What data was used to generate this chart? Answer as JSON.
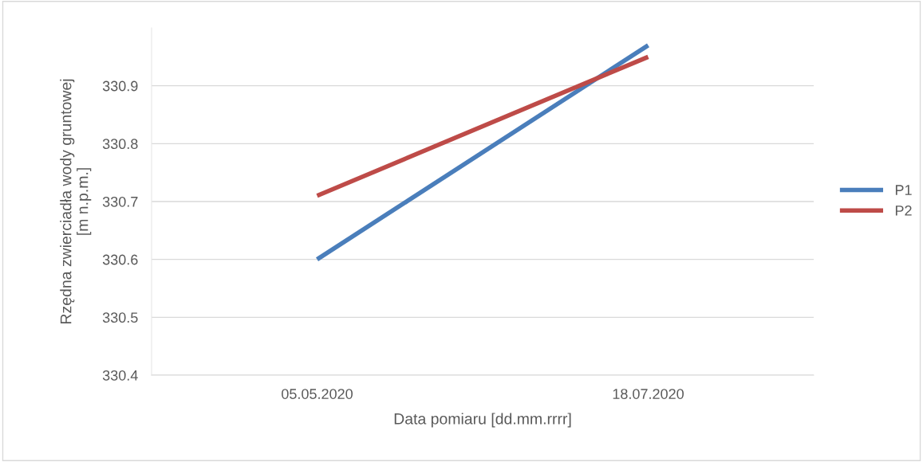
{
  "chart_data": {
    "type": "line",
    "xlabel": "Data pomiaru [dd.mm.rrrr]",
    "ylabel": "Rzędna zwierciadła wody gruntowej\n[m n.p.m.]",
    "categories": [
      "05.05.2020",
      "18.07.2020"
    ],
    "series": [
      {
        "name": "P1",
        "color": "#4a7ebb",
        "values": [
          330.6,
          330.97
        ]
      },
      {
        "name": "P2",
        "color": "#be4b48",
        "values": [
          330.71,
          330.95
        ]
      }
    ],
    "ylim": [
      330.4,
      331.0
    ],
    "yticks": [
      {
        "value": 330.4,
        "label": "330.4"
      },
      {
        "value": 330.5,
        "label": "330.5"
      },
      {
        "value": 330.6,
        "label": "330.6"
      },
      {
        "value": 330.7,
        "label": "330.7"
      },
      {
        "value": 330.8,
        "label": "330.8"
      },
      {
        "value": 330.9,
        "label": "330.9"
      }
    ],
    "grid": "y",
    "legend": "right",
    "marker": "none",
    "line_style": "solid"
  }
}
